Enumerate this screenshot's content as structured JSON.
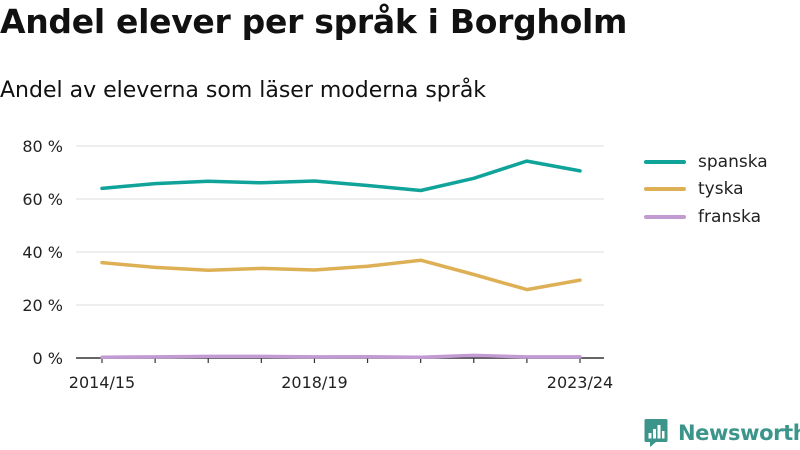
{
  "page": {
    "title": "Andel elever per språk i Borgholm",
    "subtitle": "Andel av eleverna som läser moderna språk"
  },
  "brand": {
    "name": "Newsworthy",
    "icon": "bar-chart-speech-bubble-icon",
    "color": "#3b958b"
  },
  "chart_data": {
    "type": "line",
    "title": "Andel elever per språk i Borgholm",
    "subtitle": "Andel av eleverna som läser moderna språk",
    "xlabel": "",
    "ylabel": "",
    "x": [
      "2014/15",
      "2015/16",
      "2016/17",
      "2017/18",
      "2018/19",
      "2019/20",
      "2020/21",
      "2021/22",
      "2022/23",
      "2023/24"
    ],
    "x_tick_labels": [
      "2014/15",
      "2018/19",
      "2023/24"
    ],
    "ylim": [
      0,
      80
    ],
    "y_ticks": [
      0,
      20,
      40,
      60,
      80
    ],
    "y_tick_labels": [
      "0 %",
      "20 %",
      "40 %",
      "60 %",
      "80 %"
    ],
    "grid": "horizontal",
    "legend_position": "right",
    "series": [
      {
        "name": "spanska",
        "color": "#0fa39a",
        "values": [
          64,
          65.8,
          66.7,
          66.1,
          66.8,
          65.1,
          63.2,
          67.8,
          74.3,
          70.6
        ]
      },
      {
        "name": "tyska",
        "color": "#deb055",
        "values": [
          36,
          34.2,
          33.1,
          33.8,
          33.2,
          34.6,
          36.9,
          31.5,
          25.8,
          29.4
        ]
      },
      {
        "name": "franska",
        "color": "#c39bd3",
        "values": [
          0.3,
          0.4,
          0.6,
          0.6,
          0.4,
          0.5,
          0.3,
          1.0,
          0.4,
          0.4
        ]
      }
    ]
  }
}
